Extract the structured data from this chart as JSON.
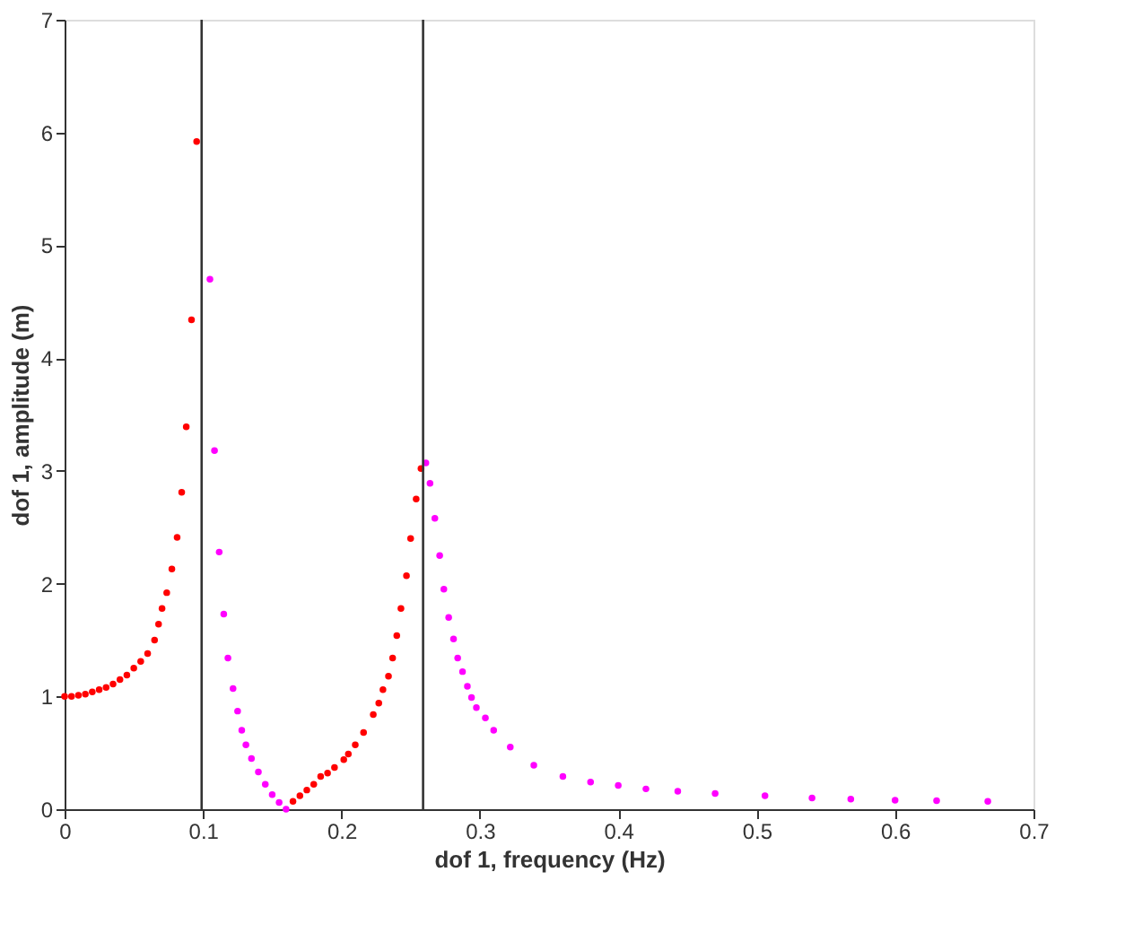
{
  "chart_data": {
    "type": "scatter",
    "xlabel": "dof 1, frequency (Hz)",
    "ylabel": "dof 1, amplitude (m)",
    "xlim": [
      0,
      0.7
    ],
    "xticks": [
      0,
      0.1,
      0.2,
      0.3,
      0.4,
      0.5,
      0.6,
      0.7
    ],
    "ylim": [
      0,
      7
    ],
    "yticks": [
      0,
      1,
      2,
      3,
      4,
      5,
      6,
      7
    ],
    "grid": false,
    "legend": false,
    "marker": "circle",
    "series": [
      {
        "color": "#ff0000",
        "x": [
          0,
          0.005,
          0.01,
          0.015,
          0.02,
          0.025,
          0.03,
          0.035,
          0.04,
          0.045,
          0.05,
          0.055,
          0.06,
          0.065,
          0.0679,
          0.0704,
          0.0738,
          0.0775,
          0.0813,
          0.0846,
          0.0879,
          0.0917,
          0.0954,
          0.165,
          0.17,
          0.175,
          0.18,
          0.185,
          0.19,
          0.195,
          0.2017,
          0.205,
          0.21,
          0.216,
          0.223,
          0.227,
          0.23,
          0.234,
          0.237,
          0.24,
          0.243,
          0.247,
          0.25,
          0.254,
          0.2575
        ],
        "values": [
          1.0,
          1.0,
          1.01,
          1.02,
          1.04,
          1.06,
          1.08,
          1.11,
          1.15,
          1.19,
          1.25,
          1.31,
          1.38,
          1.5,
          1.64,
          1.78,
          1.92,
          2.13,
          2.41,
          2.81,
          3.39,
          4.34,
          5.92,
          0.07,
          0.12,
          0.17,
          0.22,
          0.29,
          0.32,
          0.37,
          0.44,
          0.49,
          0.57,
          0.68,
          0.84,
          0.94,
          1.06,
          1.18,
          1.34,
          1.54,
          1.78,
          2.07,
          2.4,
          2.75,
          3.02
        ]
      },
      {
        "color": "#ff00ff",
        "x": [
          0.105,
          0.1083,
          0.1117,
          0.115,
          0.118,
          0.1217,
          0.125,
          0.128,
          0.131,
          0.135,
          0.14,
          0.145,
          0.15,
          0.155,
          0.16,
          0.261,
          0.264,
          0.2675,
          0.271,
          0.274,
          0.2775,
          0.281,
          0.284,
          0.2875,
          0.291,
          0.294,
          0.2975,
          0.304,
          0.31,
          0.322,
          0.339,
          0.36,
          0.38,
          0.4,
          0.42,
          0.443,
          0.47,
          0.506,
          0.54,
          0.568,
          0.6,
          0.63,
          0.667
        ],
        "values": [
          4.7,
          3.18,
          2.28,
          1.73,
          1.34,
          1.07,
          0.87,
          0.7,
          0.57,
          0.45,
          0.33,
          0.22,
          0.13,
          0.06,
          0.0,
          3.07,
          2.89,
          2.58,
          2.25,
          1.95,
          1.7,
          1.51,
          1.34,
          1.22,
          1.09,
          0.99,
          0.9,
          0.81,
          0.7,
          0.55,
          0.39,
          0.29,
          0.24,
          0.21,
          0.18,
          0.16,
          0.14,
          0.12,
          0.1,
          0.09,
          0.08,
          0.075,
          0.07
        ]
      }
    ],
    "ref_lines": [
      {
        "axis": "x",
        "value": 0.099,
        "color": "#333333"
      },
      {
        "axis": "x",
        "value": 0.259,
        "color": "#333333"
      }
    ]
  }
}
